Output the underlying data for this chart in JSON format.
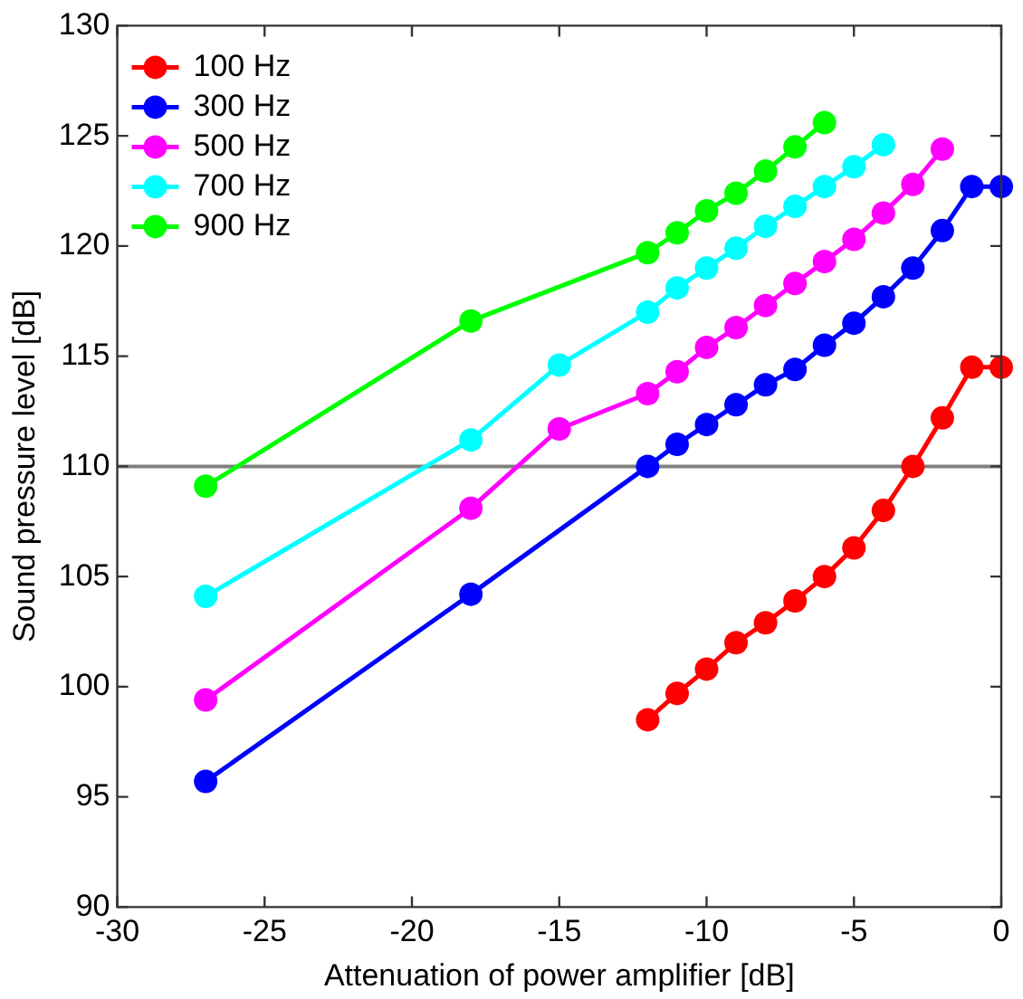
{
  "chart_data": {
    "type": "line",
    "xlabel": "Attenuation of power amplifier [dB]",
    "ylabel": "Sound pressure level [dB]",
    "xlim": [
      -30,
      0
    ],
    "xticks": [
      -30,
      -25,
      -20,
      -15,
      -10,
      -5,
      0
    ],
    "ylim": [
      90,
      130
    ],
    "yticks": [
      90,
      95,
      100,
      105,
      110,
      115,
      120,
      125,
      130
    ],
    "grid": false,
    "legend": "top left",
    "marker": "circle",
    "line_style": "solid",
    "ref_lines": [
      {
        "axis": "y",
        "value": 110,
        "color": "#808080"
      }
    ],
    "series": [
      {
        "name": "100 Hz",
        "color": "#ff0000",
        "x": [
          -12,
          -11,
          -10,
          -9,
          -8,
          -7,
          -6,
          -5,
          -4,
          -3,
          -2,
          -1,
          0
        ],
        "values": [
          98.5,
          99.7,
          100.8,
          102,
          102.9,
          103.9,
          105,
          106.3,
          108,
          110,
          112.2,
          114.5,
          114.5
        ]
      },
      {
        "name": "300 Hz",
        "color": "#0000ff",
        "x": [
          -27,
          -18,
          -12,
          -11,
          -10,
          -9,
          -8,
          -7,
          -6,
          -5,
          -4,
          -3,
          -2,
          -1,
          0
        ],
        "values": [
          95.7,
          104.2,
          110,
          111,
          111.9,
          112.8,
          113.7,
          114.4,
          115.5,
          116.5,
          117.7,
          119,
          120.7,
          122.7,
          122.7
        ]
      },
      {
        "name": "500 Hz",
        "color": "#ff00ff",
        "x": [
          -27,
          -18,
          -15,
          -12,
          -11,
          -10,
          -9,
          -8,
          -7,
          -6,
          -5,
          -4,
          -3,
          -2
        ],
        "values": [
          99.4,
          108.1,
          111.7,
          113.3,
          114.3,
          115.4,
          116.3,
          117.3,
          118.3,
          119.3,
          120.3,
          121.5,
          122.8,
          124.4
        ]
      },
      {
        "name": "700 Hz",
        "color": "#00ffff",
        "x": [
          -27,
          -18,
          -15,
          -12,
          -11,
          -10,
          -9,
          -8,
          -7,
          -6,
          -5,
          -4
        ],
        "values": [
          104.1,
          111.2,
          114.6,
          117,
          118.1,
          119,
          119.9,
          120.9,
          121.8,
          122.7,
          123.6,
          124.6
        ]
      },
      {
        "name": "900 Hz",
        "color": "#00ff00",
        "x": [
          -27,
          -18,
          -12,
          -11,
          -10,
          -9,
          -8,
          -7,
          -6
        ],
        "values": [
          109.1,
          116.6,
          119.7,
          120.6,
          121.6,
          122.4,
          123.4,
          124.5,
          125.6
        ]
      }
    ]
  }
}
